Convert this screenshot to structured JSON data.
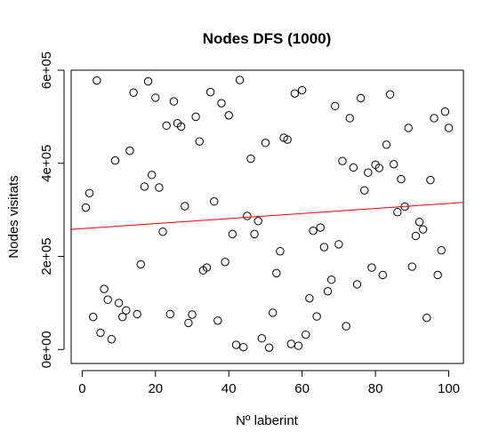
{
  "chart_data": {
    "type": "scatter",
    "title": "Nodes DFS (1000)",
    "xlabel": "Nº laberint",
    "ylabel": "Nodes visitats",
    "xlim": [
      -3,
      104
    ],
    "ylim": [
      -30000,
      600000
    ],
    "x_ticks": [
      0,
      20,
      40,
      60,
      80,
      100
    ],
    "x_tick_labels": [
      "0",
      "20",
      "40",
      "60",
      "80",
      "100"
    ],
    "y_ticks": [
      0,
      200000,
      400000,
      600000
    ],
    "y_tick_labels": [
      "0e+00",
      "2e+05",
      "4e+05",
      "6e+05"
    ],
    "grid": false,
    "series": [
      {
        "x": [
          1,
          2,
          3,
          4,
          5,
          6,
          7,
          8,
          9,
          10,
          11,
          12,
          13,
          14,
          15,
          16,
          17,
          18,
          19,
          20,
          21,
          22,
          23,
          24,
          25,
          26,
          27,
          28,
          29,
          30,
          31,
          32,
          33,
          34,
          35,
          36,
          37,
          38,
          39,
          40,
          41,
          42,
          43,
          44,
          45,
          46,
          47,
          48,
          49,
          50,
          51,
          52,
          53,
          54,
          55,
          56,
          57,
          58,
          59,
          60,
          61,
          62,
          63,
          64,
          65,
          66,
          67,
          68,
          69,
          70,
          71,
          72,
          73,
          74,
          75,
          76,
          77,
          78,
          79,
          80,
          81,
          82,
          83,
          84,
          85,
          86,
          87,
          88,
          89,
          90,
          91,
          92,
          93,
          94,
          95,
          96,
          97,
          98,
          99,
          100
        ],
        "y": [
          305000,
          336000,
          70000,
          578000,
          36000,
          130000,
          107000,
          22000,
          406000,
          100000,
          70000,
          84000,
          427000,
          552000,
          76000,
          183000,
          350000,
          576000,
          375000,
          541000,
          348000,
          253000,
          481000,
          76000,
          533000,
          486000,
          479000,
          308000,
          57000,
          75000,
          500000,
          447000,
          170000,
          176000,
          553000,
          318000,
          62000,
          529000,
          188000,
          503000,
          248000,
          10000,
          579000,
          5000,
          287000,
          410000,
          248000,
          276000,
          24000,
          444000,
          4000,
          79000,
          164000,
          211000,
          455000,
          451000,
          12000,
          550000,
          8000,
          557000,
          32000,
          110000,
          255000,
          71000,
          262000,
          220000,
          125000,
          150000,
          523000,
          226000,
          405000,
          50000,
          497000,
          391000,
          140000,
          540000,
          342000,
          380000,
          176000,
          397000,
          390000,
          160000,
          440000,
          548000,
          398000,
          295000,
          366000,
          307000,
          476000,
          178000,
          244000,
          274000,
          258000,
          68000,
          364000,
          497000,
          160000,
          213000,
          511000,
          476000
        ]
      }
    ],
    "trend_line": {
      "color": "#ff0000",
      "x": [
        -3,
        104
      ],
      "y": [
        258000,
        316000
      ]
    }
  }
}
